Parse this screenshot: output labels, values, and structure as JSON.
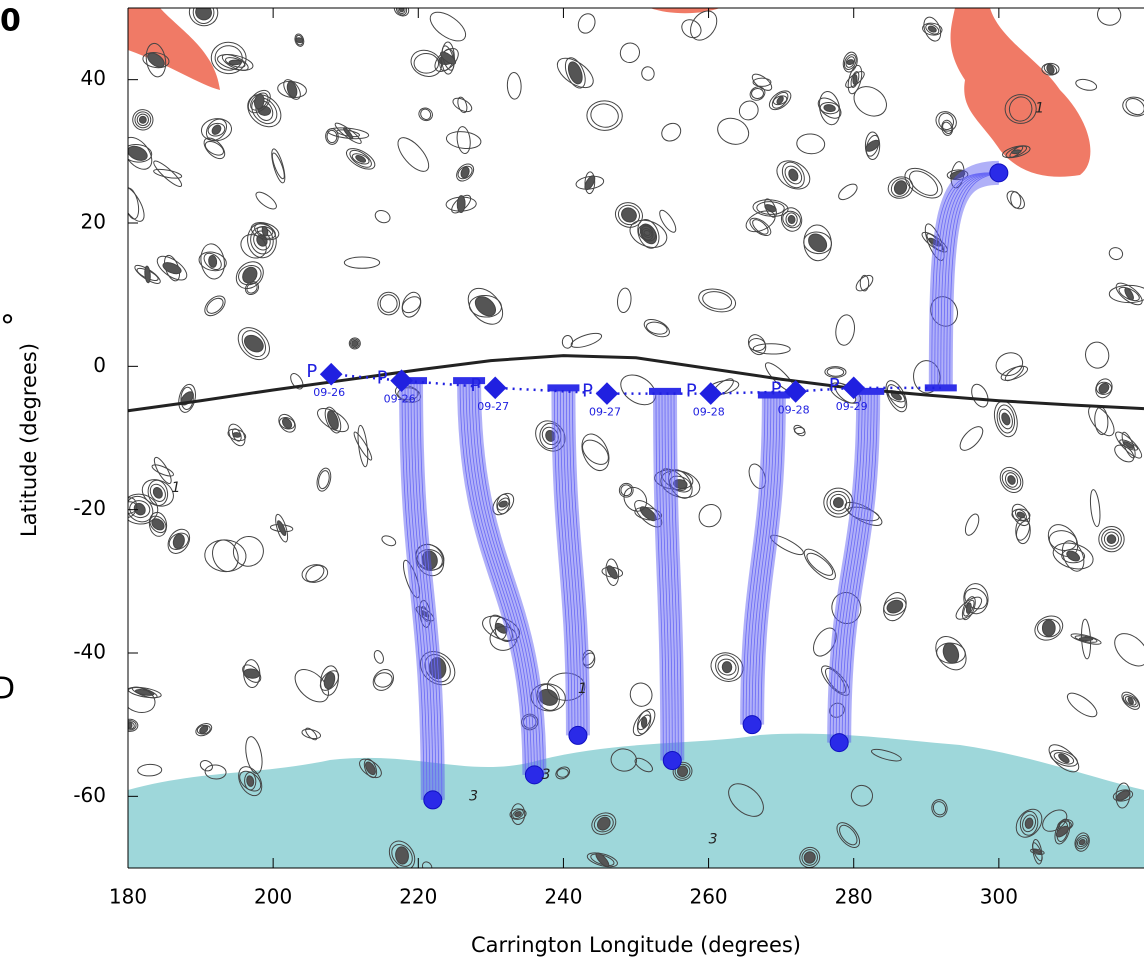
{
  "chart_data": {
    "type": "fieldmap",
    "x_label": "Carrington Longitude (degrees)",
    "y_label": "Latitude (degrees)",
    "xlim": [
      180,
      320
    ],
    "ylim": [
      -70,
      50
    ],
    "xticks": [
      180,
      200,
      220,
      240,
      260,
      280,
      300
    ],
    "yticks": [
      -60,
      -40,
      -20,
      0,
      20,
      40
    ],
    "neutral_line": {
      "color": "#222222",
      "x": [
        180,
        190,
        200,
        210,
        220,
        230,
        240,
        250,
        260,
        270,
        280,
        290,
        300,
        310,
        320
      ],
      "y": [
        -6.2,
        -4.8,
        -3.3,
        -1.9,
        -0.5,
        0.8,
        1.5,
        1.2,
        -0.3,
        -1.8,
        -3.1,
        -4,
        -4.8,
        -5.4,
        -5.9
      ]
    },
    "points": {
      "name": "P",
      "color": "#2020e0",
      "lon": [
        208,
        217.7,
        230.6,
        246,
        260.3,
        272,
        280
      ],
      "lat": [
        -1.1,
        -2,
        -3,
        -3.8,
        -3.8,
        -3.5,
        -3
      ],
      "labels": [
        "09-26",
        "09-26",
        "09-27",
        "09-27",
        "09-28",
        "09-28",
        "09-29"
      ]
    },
    "field_lines": {
      "color": "#5050f0",
      "lon_start": [
        219,
        227,
        240,
        254,
        269,
        282,
        292
      ],
      "lat_start": [
        -2,
        -2,
        -3,
        -3.5,
        -4,
        -3.5,
        -3
      ],
      "lon_end": [
        222,
        236,
        242,
        255,
        266,
        278,
        300
      ],
      "lat_end": [
        -60.5,
        -57,
        -51.5,
        -55,
        -50,
        -52.5,
        27
      ]
    },
    "annotations": [
      "1",
      "3",
      "3",
      "1",
      "1",
      "3"
    ],
    "annotation_lon": [
      186,
      237,
      227,
      242,
      305,
      260
    ],
    "annotation_lat": [
      -17,
      -57,
      -60,
      -45,
      36,
      -66
    ],
    "fragments": [
      "0",
      "°",
      "D"
    ]
  }
}
